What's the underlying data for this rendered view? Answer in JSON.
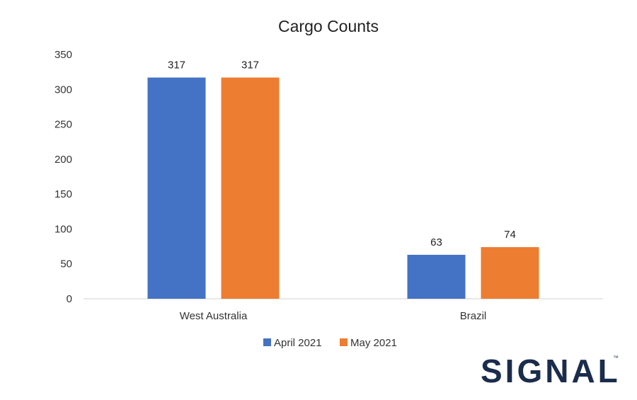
{
  "chart_data": {
    "type": "bar",
    "title": "Cargo Counts",
    "xlabel": "",
    "ylabel": "",
    "categories": [
      "West Australia",
      "Brazil"
    ],
    "series": [
      {
        "name": "April 2021",
        "values": [
          317,
          63
        ],
        "color": "#4472c4"
      },
      {
        "name": "May 2021",
        "values": [
          317,
          74
        ],
        "color": "#ed7d31"
      }
    ],
    "ylim": [
      0,
      350
    ],
    "yticks": [
      0,
      50,
      100,
      150,
      200,
      250,
      300,
      350
    ],
    "grid": false,
    "data_labels": true,
    "legend_position": "bottom"
  },
  "logo": {
    "text": "SIGNAL",
    "trademark": "™",
    "color": "#1b2c4c"
  }
}
